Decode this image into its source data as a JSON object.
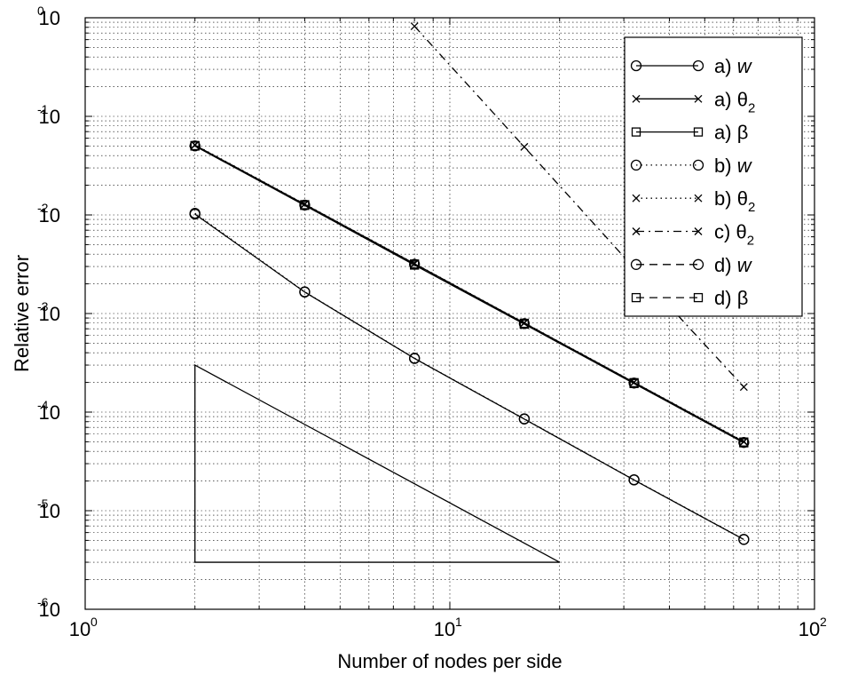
{
  "chart_data": {
    "type": "line",
    "title": "",
    "xlabel": "Number of nodes per side",
    "ylabel": "Relative error",
    "xscale": "log",
    "yscale": "log",
    "xlim": [
      1,
      100
    ],
    "ylim": [
      1e-06,
      1
    ],
    "grid": true,
    "legend_position": "top-right",
    "x_ticks": [
      {
        "value": 1,
        "base": "10",
        "exp": "0"
      },
      {
        "value": 10,
        "base": "10",
        "exp": "1"
      },
      {
        "value": 100,
        "base": "10",
        "exp": "2"
      }
    ],
    "y_ticks": [
      {
        "value": 1,
        "base": "10",
        "exp": "0"
      },
      {
        "value": 0.1,
        "base": "10",
        "exp": "-1"
      },
      {
        "value": 0.01,
        "base": "10",
        "exp": "-2"
      },
      {
        "value": 0.001,
        "base": "10",
        "exp": "-3"
      },
      {
        "value": 0.0001,
        "base": "10",
        "exp": "-4"
      },
      {
        "value": 1e-05,
        "base": "10",
        "exp": "-5"
      },
      {
        "value": 1e-06,
        "base": "10",
        "exp": "-6"
      }
    ],
    "series": [
      {
        "name": "a) w",
        "label_main": "a) ",
        "label_sym": "w",
        "label_sub": "",
        "sym_italic": true,
        "line": "solid",
        "marker": "circle",
        "x": [
          2,
          4,
          8,
          16,
          32,
          64
        ],
        "y": [
          0.0102,
          0.00165,
          0.00035,
          8.5e-05,
          2.05e-05,
          5.1e-06
        ]
      },
      {
        "name": "a) θ2",
        "label_main": "a) ",
        "label_sym": "θ",
        "label_sub": "2",
        "sym_italic": false,
        "line": "solid",
        "marker": "x",
        "x": [
          2,
          4,
          8,
          16,
          32,
          64
        ],
        "y": [
          0.051,
          0.0128,
          0.0032,
          0.0008,
          0.0002,
          5e-05
        ]
      },
      {
        "name": "a) β",
        "label_main": "a) ",
        "label_sym": "β",
        "label_sub": "",
        "sym_italic": false,
        "line": "solid",
        "marker": "square",
        "x": [
          2,
          4,
          8,
          16,
          32,
          64
        ],
        "y": [
          0.05,
          0.0125,
          0.0031,
          0.00078,
          0.000195,
          4.88e-05
        ]
      },
      {
        "name": "b) w",
        "label_main": "b) ",
        "label_sym": "w",
        "label_sub": "",
        "sym_italic": true,
        "line": "dotted",
        "marker": "circle",
        "x": [
          2,
          4,
          8,
          16,
          32,
          64
        ],
        "y": [
          0.0104,
          0.00166,
          0.000352,
          8.55e-05,
          2.06e-05,
          5.12e-06
        ]
      },
      {
        "name": "b) θ2",
        "label_main": "b) ",
        "label_sym": "θ",
        "label_sub": "2",
        "sym_italic": false,
        "line": "dotted",
        "marker": "x",
        "x": [
          2,
          4,
          8,
          16,
          32,
          64
        ],
        "y": [
          0.0515,
          0.0129,
          0.00322,
          0.000805,
          0.000201,
          5.05e-05
        ]
      },
      {
        "name": "c) θ2",
        "label_main": "c) ",
        "label_sym": "θ",
        "label_sub": "2",
        "sym_italic": false,
        "line": "dashdot",
        "marker": "x",
        "x": [
          8,
          16,
          32,
          64
        ],
        "y": [
          0.82,
          0.049,
          0.0029,
          0.00018
        ]
      },
      {
        "name": "d) w",
        "label_main": "d) ",
        "label_sym": "w",
        "label_sub": "",
        "sym_italic": true,
        "line": "dashed",
        "marker": "circle",
        "x": [
          2,
          4,
          8,
          16,
          32,
          64
        ],
        "y": [
          0.0502,
          0.0126,
          0.00316,
          0.00079,
          0.000197,
          4.92e-05
        ]
      },
      {
        "name": "d) β",
        "label_main": "d) ",
        "label_sym": "β",
        "label_sub": "",
        "sym_italic": false,
        "line": "dashed",
        "marker": "square",
        "x": [
          2,
          4,
          8,
          16,
          32,
          64
        ],
        "y": [
          0.0505,
          0.0127,
          0.00318,
          0.000795,
          0.000199,
          4.97e-05
        ]
      }
    ],
    "annotations": [
      {
        "type": "slope-triangle",
        "x": [
          2,
          2,
          20
        ],
        "y": [
          0.0003,
          3e-06,
          3e-06
        ]
      }
    ]
  }
}
